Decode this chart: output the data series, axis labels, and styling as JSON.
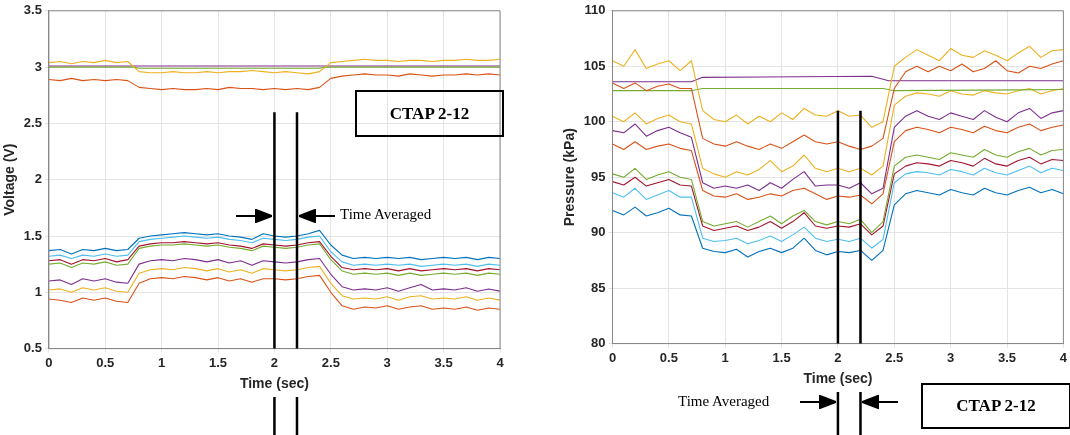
{
  "chart_data": [
    {
      "type": "line",
      "xlabel": "Time (sec)",
      "ylabel": "Voltage (V)",
      "xlim": [
        0,
        4
      ],
      "ylim": [
        0.5,
        3.5
      ],
      "xticks": [
        0,
        0.5,
        1,
        1.5,
        2,
        2.5,
        3,
        3.5,
        4
      ],
      "yticks": [
        0.5,
        1,
        1.5,
        2,
        2.5,
        3,
        3.5
      ],
      "grid": true,
      "x": [
        0,
        0.1,
        0.2,
        0.3,
        0.4,
        0.5,
        0.6,
        0.7,
        0.8,
        0.9,
        1,
        1.1,
        1.2,
        1.3,
        1.4,
        1.5,
        1.6,
        1.7,
        1.8,
        1.9,
        2,
        2.1,
        2.2,
        2.3,
        2.4,
        2.5,
        2.6,
        2.7,
        2.8,
        2.9,
        3,
        3.1,
        3.2,
        3.3,
        3.4,
        3.5,
        3.6,
        3.7,
        3.8,
        3.9,
        4
      ],
      "series": [
        {
          "color": "#0072bd",
          "values": [
            1.37,
            1.38,
            1.34,
            1.38,
            1.37,
            1.39,
            1.37,
            1.38,
            1.48,
            1.5,
            1.51,
            1.52,
            1.53,
            1.52,
            1.51,
            1.52,
            1.5,
            1.49,
            1.47,
            1.52,
            1.5,
            1.49,
            1.5,
            1.52,
            1.55,
            1.42,
            1.33,
            1.3,
            1.31,
            1.3,
            1.31,
            1.3,
            1.31,
            1.29,
            1.3,
            1.31,
            1.3,
            1.31,
            1.29,
            1.31,
            1.3
          ]
        },
        {
          "color": "#4dbeee",
          "values": [
            1.32,
            1.33,
            1.3,
            1.33,
            1.32,
            1.34,
            1.32,
            1.33,
            1.45,
            1.47,
            1.48,
            1.49,
            1.5,
            1.49,
            1.48,
            1.49,
            1.47,
            1.46,
            1.44,
            1.48,
            1.47,
            1.46,
            1.47,
            1.49,
            1.5,
            1.36,
            1.27,
            1.24,
            1.25,
            1.24,
            1.25,
            1.24,
            1.25,
            1.23,
            1.24,
            1.25,
            1.24,
            1.25,
            1.23,
            1.25,
            1.24
          ]
        },
        {
          "color": "#a2142f",
          "values": [
            1.28,
            1.29,
            1.25,
            1.29,
            1.28,
            1.3,
            1.27,
            1.29,
            1.41,
            1.43,
            1.44,
            1.44,
            1.45,
            1.44,
            1.43,
            1.44,
            1.42,
            1.41,
            1.39,
            1.43,
            1.42,
            1.41,
            1.42,
            1.44,
            1.45,
            1.32,
            1.22,
            1.2,
            1.21,
            1.2,
            1.21,
            1.19,
            1.21,
            1.19,
            1.2,
            1.21,
            1.2,
            1.21,
            1.19,
            1.21,
            1.2
          ]
        },
        {
          "color": "#77ac30",
          "values": [
            1.25,
            1.26,
            1.22,
            1.26,
            1.25,
            1.27,
            1.24,
            1.25,
            1.39,
            1.41,
            1.42,
            1.42,
            1.43,
            1.42,
            1.41,
            1.42,
            1.4,
            1.39,
            1.37,
            1.41,
            1.4,
            1.39,
            1.4,
            1.42,
            1.43,
            1.29,
            1.19,
            1.16,
            1.17,
            1.16,
            1.17,
            1.15,
            1.17,
            1.15,
            1.16,
            1.17,
            1.16,
            1.17,
            1.15,
            1.17,
            1.16
          ]
        },
        {
          "color": "#7e2f8e",
          "values": [
            1.1,
            1.11,
            1.07,
            1.12,
            1.1,
            1.12,
            1.09,
            1.08,
            1.25,
            1.28,
            1.29,
            1.28,
            1.3,
            1.29,
            1.27,
            1.29,
            1.26,
            1.28,
            1.24,
            1.28,
            1.27,
            1.26,
            1.27,
            1.29,
            1.3,
            1.16,
            1.05,
            1.02,
            1.03,
            1.02,
            1.04,
            1.01,
            1.04,
            1.07,
            1.02,
            1.03,
            1.02,
            1.04,
            1.01,
            1.03,
            1.01
          ]
        },
        {
          "color": "#edb120",
          "values": [
            1.02,
            1.03,
            1,
            1.04,
            1.02,
            1.04,
            1.01,
            1,
            1.17,
            1.2,
            1.21,
            1.2,
            1.22,
            1.21,
            1.19,
            1.21,
            1.18,
            1.2,
            1.17,
            1.21,
            1.2,
            1.19,
            1.2,
            1.22,
            1.23,
            1.08,
            0.97,
            0.94,
            0.95,
            0.94,
            0.96,
            0.93,
            0.96,
            0.97,
            0.94,
            0.95,
            0.94,
            0.96,
            0.93,
            0.95,
            0.93
          ]
        },
        {
          "color": "#d95319",
          "values": [
            0.94,
            0.93,
            0.91,
            0.95,
            0.93,
            0.95,
            0.92,
            0.91,
            1.08,
            1.12,
            1.13,
            1.12,
            1.14,
            1.13,
            1.11,
            1.13,
            1.1,
            1.12,
            1.09,
            1.12,
            1.12,
            1.11,
            1.12,
            1.14,
            1.15,
            1,
            0.88,
            0.85,
            0.87,
            0.86,
            0.88,
            0.85,
            0.87,
            0.88,
            0.85,
            0.86,
            0.85,
            0.87,
            0.84,
            0.86,
            0.85
          ]
        },
        {
          "color": "#edb120",
          "values": [
            3.04,
            3.05,
            3.03,
            3.05,
            3.04,
            3.06,
            3.04,
            3.05,
            2.96,
            2.95,
            2.95,
            2.96,
            2.95,
            2.95,
            2.96,
            2.95,
            2.96,
            2.96,
            2.97,
            2.96,
            2.95,
            2.96,
            2.95,
            2.94,
            2.96,
            3.04,
            3.05,
            3.06,
            3.07,
            3.06,
            3.06,
            3.05,
            3.06,
            3.06,
            3.05,
            3.06,
            3.06,
            3.07,
            3.06,
            3.06,
            3.07
          ]
        },
        {
          "color": "#d95319",
          "values": [
            2.89,
            2.88,
            2.9,
            2.88,
            2.89,
            2.88,
            2.89,
            2.88,
            2.82,
            2.81,
            2.8,
            2.81,
            2.8,
            2.8,
            2.81,
            2.8,
            2.82,
            2.81,
            2.81,
            2.8,
            2.81,
            2.8,
            2.81,
            2.8,
            2.82,
            2.9,
            2.92,
            2.93,
            2.94,
            2.93,
            2.93,
            2.92,
            2.94,
            2.93,
            2.92,
            2.93,
            2.93,
            2.94,
            2.93,
            2.94,
            2.93
          ]
        },
        {
          "color": "#77ac30",
          "x": [
            0,
            0.75,
            0.8,
            2.4,
            2.45,
            4
          ],
          "values": [
            3,
            3,
            2.99,
            2.99,
            3,
            3
          ]
        },
        {
          "color": "#7e2f8e",
          "x": [
            0,
            4
          ],
          "values": [
            3.01,
            3.01
          ]
        }
      ],
      "ref_lines": [
        {
          "axis": "x",
          "value": 2,
          "color": "#000000"
        },
        {
          "axis": "x",
          "value": 2.2,
          "color": "#000000"
        }
      ],
      "annotations": [
        "CTAP 2-12",
        "Time Averaged"
      ]
    },
    {
      "type": "line",
      "xlabel": "Time (sec)",
      "ylabel": "Pressure (kPa)",
      "xlim": [
        0,
        4
      ],
      "ylim": [
        80,
        110
      ],
      "xticks": [
        0,
        0.5,
        1,
        1.5,
        2,
        2.5,
        3,
        3.5,
        4
      ],
      "yticks": [
        80,
        85,
        90,
        95,
        100,
        105,
        110
      ],
      "grid": true,
      "x": [
        0,
        0.1,
        0.2,
        0.3,
        0.4,
        0.5,
        0.6,
        0.7,
        0.8,
        0.9,
        1,
        1.1,
        1.2,
        1.3,
        1.4,
        1.5,
        1.6,
        1.7,
        1.8,
        1.9,
        2,
        2.1,
        2.2,
        2.3,
        2.4,
        2.5,
        2.6,
        2.7,
        2.8,
        2.9,
        3,
        3.1,
        3.2,
        3.3,
        3.4,
        3.5,
        3.6,
        3.7,
        3.8,
        3.9,
        4
      ],
      "series": [
        {
          "color": "#edb120",
          "values": [
            105.5,
            105,
            106.5,
            104.8,
            105.2,
            105.5,
            104.6,
            105.5,
            101,
            100.2,
            100,
            100.6,
            99.8,
            100.5,
            100,
            100.8,
            100.2,
            101.2,
            100.6,
            100.5,
            101,
            100.5,
            100.6,
            99.5,
            100,
            105,
            105.8,
            106.5,
            106,
            105.5,
            106.6,
            106,
            105.8,
            106.4,
            106,
            105.5,
            106.2,
            106.8,
            105.8,
            106.4,
            106.5
          ]
        },
        {
          "color": "#d95319",
          "values": [
            103.5,
            103,
            103.5,
            102.8,
            103.2,
            103.4,
            103,
            103,
            98.5,
            98,
            97.8,
            98.2,
            97.8,
            97.5,
            98,
            97.6,
            98.2,
            98.8,
            98.2,
            98,
            98.2,
            97.8,
            97.5,
            97.8,
            98.5,
            103,
            104.5,
            105,
            104.5,
            105,
            104.6,
            105.2,
            104.5,
            104.8,
            105.5,
            104.6,
            104.4,
            105,
            104.8,
            105.2,
            105.5
          ]
        },
        {
          "color": "#7e2f8e",
          "x": [
            0,
            0.7,
            0.8,
            2.3,
            2.45,
            4
          ],
          "values": [
            103.6,
            103.6,
            104,
            104.1,
            103.7,
            103.7
          ]
        },
        {
          "color": "#77ac30",
          "x": [
            0,
            0.7,
            0.8,
            2.4,
            2.5,
            4
          ],
          "values": [
            102.8,
            102.8,
            103,
            103,
            102.8,
            102.9
          ]
        },
        {
          "color": "#edb120",
          "values": [
            100.5,
            100,
            100.8,
            99.8,
            100.3,
            100.6,
            100,
            99.8,
            95.8,
            95.3,
            95,
            95.5,
            95.2,
            95.7,
            96.5,
            95.5,
            96,
            97,
            95.8,
            95.5,
            95.8,
            95.5,
            95.8,
            95.2,
            96,
            101.5,
            102.3,
            102.6,
            102.5,
            102.3,
            102.8,
            102.5,
            102.4,
            102.8,
            102.6,
            102.5,
            102.8,
            103,
            102.5,
            102.8,
            103
          ]
        },
        {
          "color": "#7e2f8e",
          "values": [
            99.2,
            99,
            99.8,
            98.7,
            99.2,
            99.5,
            99,
            98.6,
            94.5,
            94,
            94.2,
            94,
            94.3,
            93.8,
            94.5,
            94,
            94.8,
            95.5,
            94.2,
            94.3,
            94.3,
            94,
            94.5,
            93.5,
            94,
            99.5,
            100.5,
            101,
            100.5,
            100.2,
            100.8,
            100.5,
            100.2,
            101,
            100.4,
            100,
            100.8,
            101.2,
            100.3,
            100.8,
            101
          ]
        },
        {
          "color": "#d95319",
          "values": [
            98,
            97.5,
            98.2,
            97.5,
            97.8,
            98,
            97.6,
            97.4,
            93.8,
            93.3,
            93.2,
            93.5,
            93,
            93.2,
            93.5,
            93.3,
            93.8,
            94,
            93.5,
            93,
            93.3,
            93.2,
            93.4,
            92.6,
            93.5,
            98.2,
            99.2,
            99.5,
            99.3,
            99,
            99.5,
            99.3,
            99,
            99.6,
            99.2,
            99,
            99.5,
            99.8,
            99.2,
            99.5,
            99.7
          ]
        },
        {
          "color": "#77ac30",
          "values": [
            95.3,
            95,
            95.8,
            94.8,
            95.2,
            95.5,
            95,
            94.8,
            91,
            90.6,
            90.8,
            91,
            90.5,
            91,
            91.5,
            90.8,
            91.5,
            92,
            91,
            90.7,
            91,
            90.8,
            91.2,
            90,
            91,
            96,
            96.8,
            97,
            96.8,
            96.6,
            97.2,
            97,
            96.8,
            97.5,
            97,
            96.8,
            97.3,
            97.6,
            97,
            97.4,
            97.5
          ]
        },
        {
          "color": "#a2142f",
          "values": [
            94.6,
            94.3,
            95,
            94.2,
            94.5,
            94.8,
            94.3,
            94.2,
            90.6,
            90.2,
            90.4,
            90.6,
            90.2,
            90.5,
            91,
            90.4,
            91,
            91.8,
            90.6,
            90.4,
            90.6,
            90.5,
            90.8,
            89.8,
            90.6,
            95.3,
            96,
            96.3,
            96.2,
            96,
            96.5,
            96.3,
            96,
            96.7,
            96.2,
            96,
            96.5,
            96.8,
            96.2,
            96.6,
            96.5
          ]
        },
        {
          "color": "#4dbeee",
          "values": [
            93.6,
            93.2,
            94,
            93,
            93.4,
            93.8,
            93.2,
            93.2,
            89.5,
            89.2,
            89.3,
            89.5,
            89,
            89.3,
            89.7,
            89.2,
            89.8,
            90.5,
            89.5,
            89.2,
            89.4,
            89.2,
            89.5,
            88.6,
            89.4,
            94.5,
            95.3,
            95.5,
            95.4,
            95.2,
            95.7,
            95.5,
            95.2,
            95.8,
            95.4,
            95.2,
            95.6,
            96,
            95.4,
            95.8,
            95.6
          ]
        },
        {
          "color": "#0072bd",
          "values": [
            92,
            91.6,
            92.3,
            91.5,
            91.8,
            92.2,
            91.6,
            91.5,
            88.6,
            88.3,
            88.2,
            88.5,
            87.8,
            88.3,
            88.6,
            88.2,
            88.6,
            89.5,
            88.4,
            88,
            88.3,
            88.2,
            88.4,
            87.5,
            88.4,
            92.5,
            93.5,
            93.8,
            93.6,
            93.4,
            93.9,
            93.6,
            93.4,
            94,
            93.6,
            93.4,
            93.8,
            94.1,
            93.6,
            93.9,
            93.5
          ]
        }
      ],
      "ref_lines": [
        {
          "axis": "x",
          "value": 2,
          "color": "#000000"
        },
        {
          "axis": "x",
          "value": 2.2,
          "color": "#000000"
        }
      ],
      "annotations": [
        "CTAP 2-12",
        "Time Averaged"
      ]
    }
  ]
}
